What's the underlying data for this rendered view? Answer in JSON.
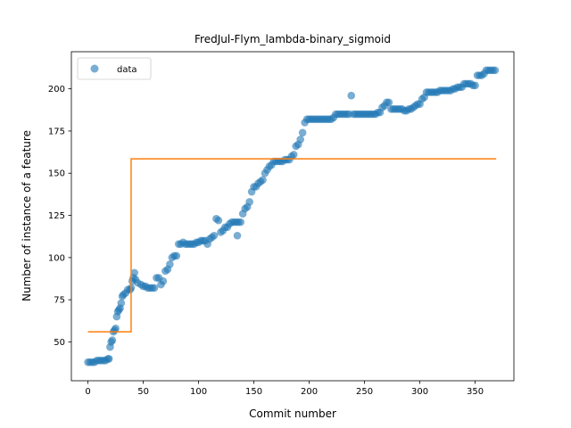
{
  "chart_data": {
    "type": "scatter",
    "title": "FredJul-Flym_lambda-binary_sigmoid",
    "xlabel": "Commit number",
    "ylabel": "Number of instance of a feature",
    "xlim": [
      -15,
      385
    ],
    "ylim": [
      27,
      222
    ],
    "xticks": [
      0,
      50,
      100,
      150,
      200,
      250,
      300,
      350
    ],
    "yticks": [
      50,
      75,
      100,
      125,
      150,
      175,
      200
    ],
    "grid": false,
    "legend_position": "top-left",
    "colors": {
      "data": "#1f77b4",
      "fit": "#ff7f0e"
    },
    "series": [
      {
        "name": "data",
        "kind": "scatter",
        "points": [
          [
            0,
            38
          ],
          [
            2,
            38
          ],
          [
            4,
            38
          ],
          [
            6,
            38
          ],
          [
            8,
            39
          ],
          [
            10,
            39
          ],
          [
            12,
            39
          ],
          [
            14,
            39
          ],
          [
            16,
            39
          ],
          [
            18,
            40
          ],
          [
            19,
            40
          ],
          [
            20,
            47
          ],
          [
            21,
            50
          ],
          [
            22,
            51
          ],
          [
            23,
            56
          ],
          [
            24,
            57
          ],
          [
            25,
            58
          ],
          [
            26,
            65
          ],
          [
            27,
            68
          ],
          [
            28,
            69
          ],
          [
            29,
            70
          ],
          [
            30,
            73
          ],
          [
            31,
            77
          ],
          [
            32,
            78
          ],
          [
            34,
            79
          ],
          [
            36,
            81
          ],
          [
            38,
            81
          ],
          [
            39,
            82
          ],
          [
            40,
            86
          ],
          [
            41,
            88
          ],
          [
            42,
            91
          ],
          [
            43,
            87
          ],
          [
            45,
            85
          ],
          [
            48,
            84
          ],
          [
            50,
            83
          ],
          [
            52,
            83
          ],
          [
            54,
            82
          ],
          [
            56,
            82
          ],
          [
            58,
            82
          ],
          [
            60,
            82
          ],
          [
            62,
            88
          ],
          [
            64,
            88
          ],
          [
            66,
            84
          ],
          [
            68,
            86
          ],
          [
            70,
            92
          ],
          [
            72,
            93
          ],
          [
            74,
            96
          ],
          [
            76,
            100
          ],
          [
            78,
            101
          ],
          [
            80,
            101
          ],
          [
            82,
            108
          ],
          [
            84,
            108
          ],
          [
            86,
            109
          ],
          [
            88,
            108
          ],
          [
            90,
            108
          ],
          [
            92,
            108
          ],
          [
            94,
            108
          ],
          [
            96,
            108
          ],
          [
            98,
            109
          ],
          [
            100,
            109
          ],
          [
            102,
            110
          ],
          [
            104,
            110
          ],
          [
            106,
            110
          ],
          [
            108,
            108
          ],
          [
            110,
            111
          ],
          [
            112,
            112
          ],
          [
            114,
            113
          ],
          [
            116,
            123
          ],
          [
            118,
            122
          ],
          [
            120,
            115
          ],
          [
            122,
            116
          ],
          [
            124,
            118
          ],
          [
            126,
            118
          ],
          [
            128,
            120
          ],
          [
            130,
            121
          ],
          [
            132,
            121
          ],
          [
            134,
            121
          ],
          [
            135,
            113
          ],
          [
            136,
            121
          ],
          [
            138,
            121
          ],
          [
            140,
            126
          ],
          [
            142,
            129
          ],
          [
            144,
            130
          ],
          [
            146,
            133
          ],
          [
            148,
            139
          ],
          [
            150,
            142
          ],
          [
            152,
            142
          ],
          [
            154,
            144
          ],
          [
            156,
            145
          ],
          [
            158,
            146
          ],
          [
            160,
            150
          ],
          [
            162,
            152
          ],
          [
            164,
            154
          ],
          [
            166,
            155
          ],
          [
            168,
            157
          ],
          [
            170,
            157
          ],
          [
            172,
            157
          ],
          [
            174,
            157
          ],
          [
            176,
            157
          ],
          [
            178,
            158
          ],
          [
            180,
            158
          ],
          [
            182,
            158
          ],
          [
            184,
            160
          ],
          [
            186,
            161
          ],
          [
            188,
            166
          ],
          [
            190,
            167
          ],
          [
            192,
            170
          ],
          [
            194,
            174
          ],
          [
            196,
            180
          ],
          [
            198,
            182
          ],
          [
            200,
            182
          ],
          [
            202,
            182
          ],
          [
            204,
            182
          ],
          [
            206,
            182
          ],
          [
            208,
            182
          ],
          [
            210,
            182
          ],
          [
            212,
            182
          ],
          [
            214,
            182
          ],
          [
            216,
            182
          ],
          [
            218,
            182
          ],
          [
            220,
            182
          ],
          [
            222,
            183
          ],
          [
            224,
            185
          ],
          [
            226,
            185
          ],
          [
            228,
            185
          ],
          [
            230,
            185
          ],
          [
            232,
            185
          ],
          [
            234,
            185
          ],
          [
            236,
            185
          ],
          [
            238,
            196
          ],
          [
            240,
            185
          ],
          [
            242,
            185
          ],
          [
            244,
            185
          ],
          [
            246,
            185
          ],
          [
            248,
            185
          ],
          [
            250,
            185
          ],
          [
            252,
            185
          ],
          [
            254,
            185
          ],
          [
            256,
            185
          ],
          [
            258,
            185
          ],
          [
            260,
            185
          ],
          [
            262,
            186
          ],
          [
            264,
            186
          ],
          [
            266,
            189
          ],
          [
            268,
            190
          ],
          [
            270,
            192
          ],
          [
            272,
            192
          ],
          [
            274,
            188
          ],
          [
            276,
            188
          ],
          [
            278,
            188
          ],
          [
            280,
            188
          ],
          [
            282,
            188
          ],
          [
            284,
            188
          ],
          [
            286,
            187
          ],
          [
            288,
            187
          ],
          [
            290,
            188
          ],
          [
            292,
            188
          ],
          [
            294,
            189
          ],
          [
            296,
            190
          ],
          [
            298,
            191
          ],
          [
            300,
            191
          ],
          [
            302,
            194
          ],
          [
            304,
            195
          ],
          [
            306,
            198
          ],
          [
            308,
            198
          ],
          [
            310,
            198
          ],
          [
            312,
            198
          ],
          [
            314,
            198
          ],
          [
            316,
            198
          ],
          [
            318,
            199
          ],
          [
            320,
            199
          ],
          [
            322,
            199
          ],
          [
            324,
            199
          ],
          [
            326,
            199
          ],
          [
            328,
            199
          ],
          [
            330,
            200
          ],
          [
            332,
            200
          ],
          [
            334,
            201
          ],
          [
            336,
            201
          ],
          [
            338,
            201
          ],
          [
            340,
            203
          ],
          [
            342,
            203
          ],
          [
            344,
            203
          ],
          [
            346,
            203
          ],
          [
            348,
            202
          ],
          [
            350,
            202
          ],
          [
            352,
            208
          ],
          [
            354,
            208
          ],
          [
            356,
            208
          ],
          [
            358,
            209
          ],
          [
            360,
            211
          ],
          [
            362,
            211
          ],
          [
            364,
            211
          ],
          [
            366,
            211
          ],
          [
            368,
            211
          ]
        ]
      },
      {
        "name": "",
        "kind": "line",
        "points": [
          [
            0,
            56
          ],
          [
            39,
            56
          ],
          [
            39,
            158.5
          ],
          [
            369,
            158.5
          ]
        ]
      }
    ]
  }
}
